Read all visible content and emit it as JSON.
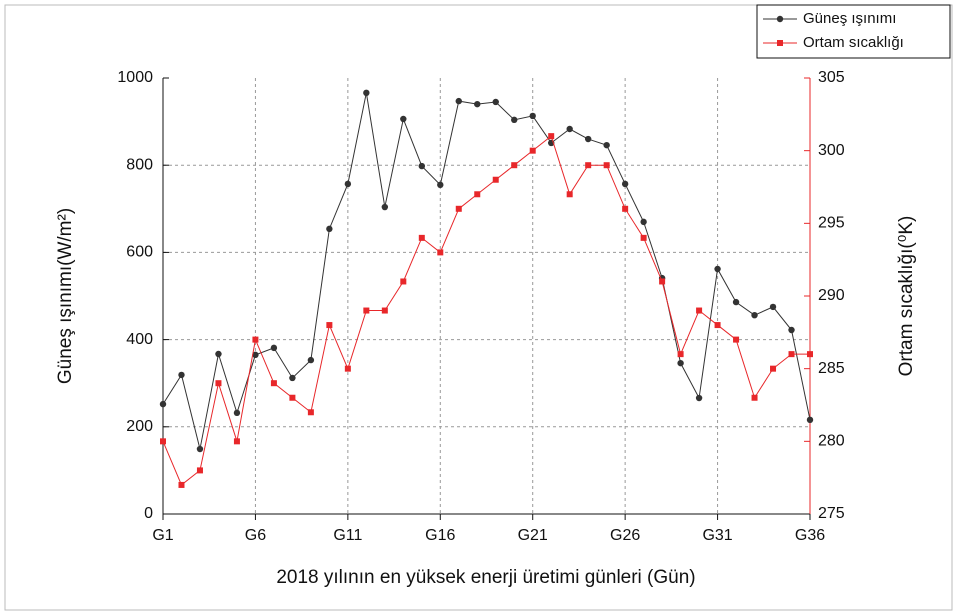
{
  "chart_data": {
    "type": "line",
    "xlabel": "2018 yılının en yüksek enerji üretimi günleri (Gün)",
    "ylabel": "Güneş ışınımı(W/m²)",
    "y2label": "Ortam sıcaklığı(⁰K)",
    "categories": [
      "G1",
      null,
      null,
      null,
      null,
      "G6",
      null,
      null,
      null,
      null,
      "G11",
      null,
      null,
      null,
      null,
      "G16",
      null,
      null,
      null,
      null,
      "G21",
      null,
      null,
      null,
      null,
      "G26",
      null,
      null,
      null,
      null,
      "G31",
      null,
      null,
      null,
      null,
      "G36"
    ],
    "ylim": [
      0,
      1000
    ],
    "yticks": [
      0,
      200,
      400,
      600,
      800,
      1000
    ],
    "y2lim": [
      275,
      305
    ],
    "y2ticks": [
      275,
      280,
      285,
      290,
      295,
      300,
      305
    ],
    "grid": true,
    "legend": "upper right",
    "series": [
      {
        "name": "Güneş ışınımı",
        "color": "#333333",
        "marker": "circle",
        "values": [
          252,
          319,
          149,
          367,
          232,
          365,
          381,
          312,
          353,
          654,
          757,
          966,
          704,
          906,
          798,
          755,
          947,
          940,
          945,
          904,
          913,
          851,
          883,
          860,
          846,
          757,
          670,
          541,
          346,
          266,
          562,
          486,
          456,
          475,
          422,
          216
        ]
      },
      {
        "name": "Ortam sıcaklığı",
        "color": "#e8272a",
        "marker": "square",
        "axis": "y2",
        "values": [
          280,
          277,
          278,
          284,
          280,
          287,
          284,
          283,
          282,
          288,
          285,
          289,
          289,
          291,
          294,
          293,
          296,
          297,
          298,
          299,
          300,
          301,
          297,
          299,
          299,
          296,
          294,
          291,
          286,
          289,
          288,
          287,
          283,
          285,
          286,
          286
        ]
      }
    ]
  }
}
